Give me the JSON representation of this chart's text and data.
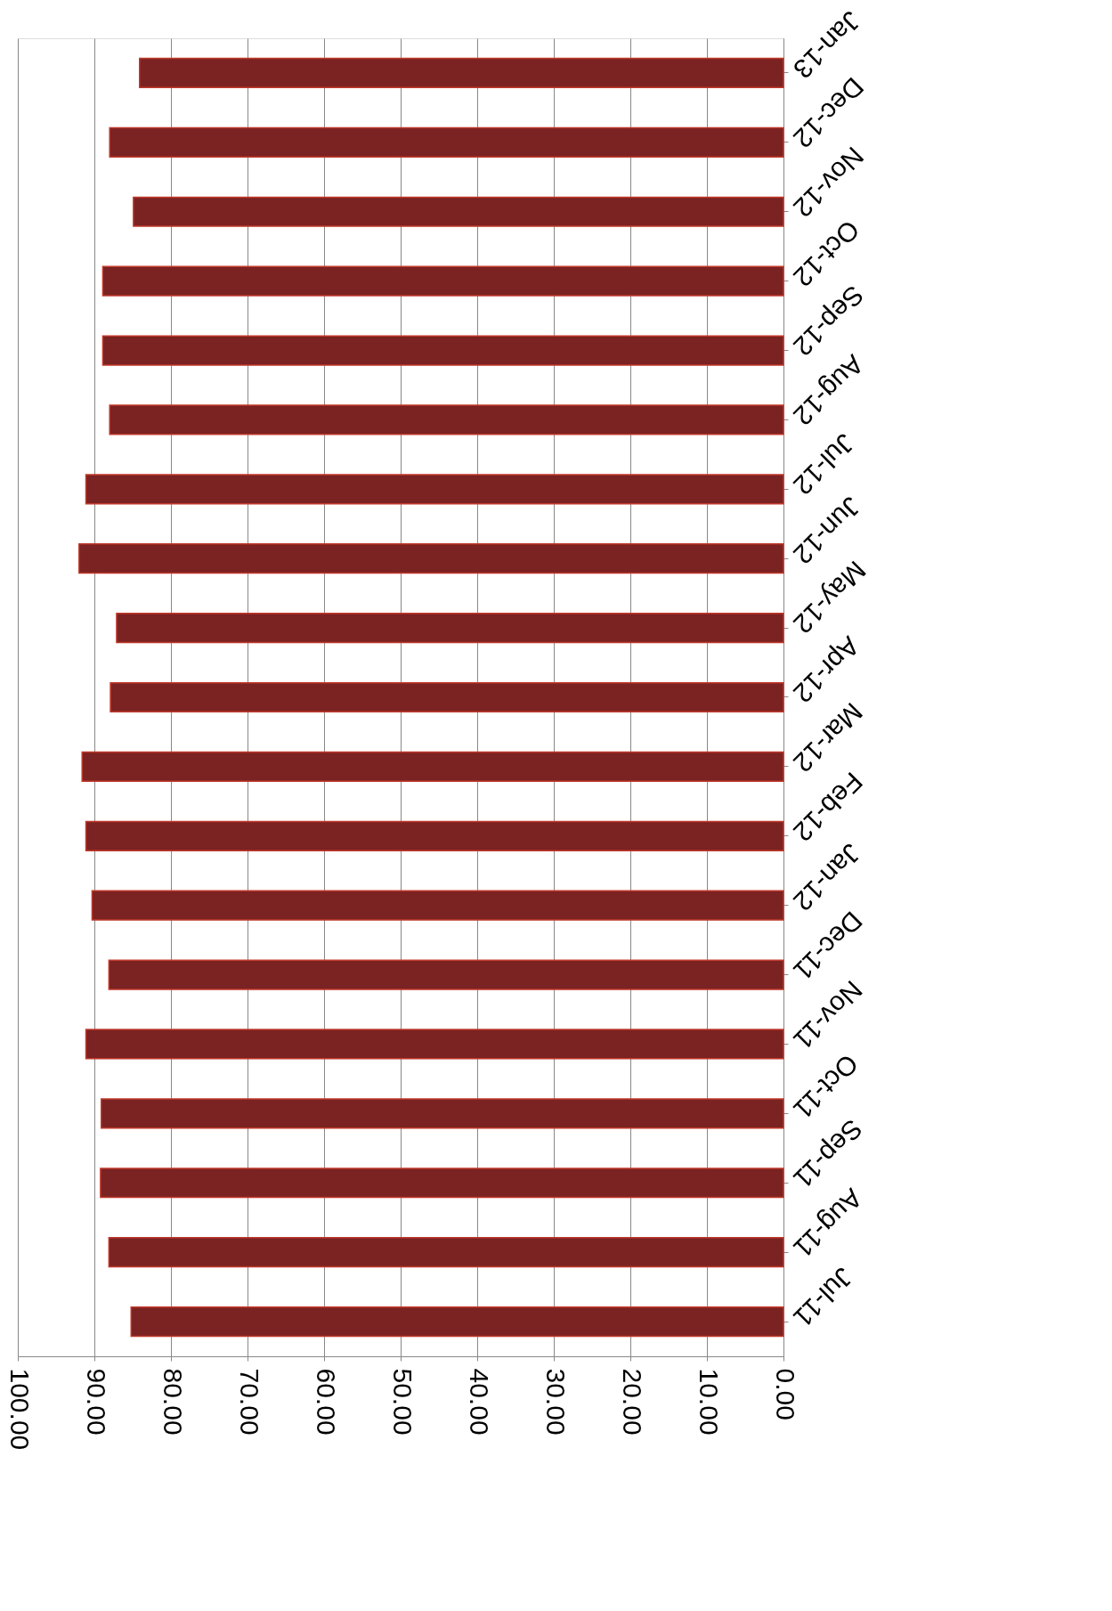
{
  "chart_data": {
    "type": "bar",
    "orientation": "horizontal",
    "categories": [
      "Jan-13",
      "Dec-12",
      "Nov-12",
      "Oct-12",
      "Sep-12",
      "Aug-12",
      "Jul-12",
      "Jun-12",
      "May-12",
      "Apr-12",
      "Mar-12",
      "Feb-12",
      "Jan-12",
      "Dec-11",
      "Nov-11",
      "Oct-11",
      "Sep-11",
      "Aug-11",
      "Jul-11"
    ],
    "values": [
      84.1,
      88.0,
      84.9,
      88.9,
      88.9,
      88.0,
      91.1,
      92.0,
      87.1,
      87.9,
      91.6,
      91.1,
      90.3,
      88.1,
      91.1,
      89.1,
      89.2,
      88.1,
      85.2
    ],
    "color": "#7b2222",
    "xlim": [
      100,
      0
    ],
    "xticks": [
      {
        "value": 100,
        "label": "100.00"
      },
      {
        "value": 90,
        "label": "90.00"
      },
      {
        "value": 80,
        "label": "80.00"
      },
      {
        "value": 70,
        "label": "70.00"
      },
      {
        "value": 60,
        "label": "60.00"
      },
      {
        "value": 50,
        "label": "50.00"
      },
      {
        "value": 40,
        "label": "40.00"
      },
      {
        "value": 30,
        "label": "30.00"
      },
      {
        "value": 20,
        "label": "20.00"
      },
      {
        "value": 10,
        "label": "10.00"
      },
      {
        "value": 0,
        "label": "0.00"
      }
    ],
    "grid": "x"
  }
}
